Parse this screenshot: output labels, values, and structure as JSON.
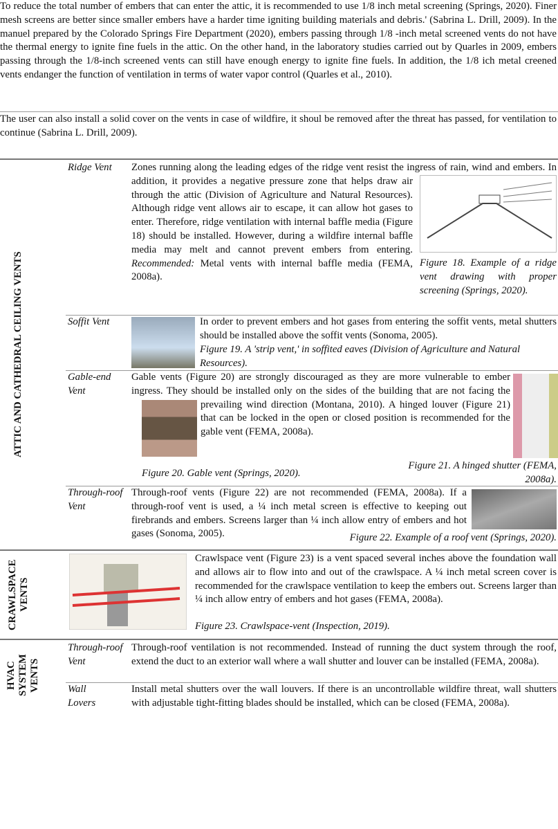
{
  "intro": {
    "paragraphs": [
      "To reduce the total number of embers that can enter the attic, it is recommended to use 1/8 inch metal screening (Springs, 2020). Finer mesh screens are better since smaller embers have a harder time igniting building materials and debris.' (Sabrina L. Drill, 2009). In the manuel prepared by the Colorado Springs Fire Department (2020), embers passing through 1/8 -inch metal screened vents do not have the thermal energy to ignite fine fuels in the attic. On the other hand, in the laboratory studies carried out by Quarles in 2009, embers passing through the 1/8-inch screened vents can still have enough energy to ignite fine fuels. In addition, the 1/8 ich metal creened vents endanger the function of ventilation in terms of water vapor control (Quarles et al., 2010).",
      "The user can also install a solid cover on the vents in case of wildfire, it shoul be removed after the threat has passed, for ventilation to continue (Sabrina L. Drill, 2009)."
    ]
  },
  "sections": [
    {
      "heading": "ATTIC AND CATHEDRAL CEILING VENTS",
      "rows": [
        {
          "label": "Ridge Vent",
          "text": "Zones running along the leading edges of the ridge vent resist the ingress of rain, wind and embers. In addition, it provides a negative pressure zone that helps draw air through the attic (Division of Agriculture and Natural Resources). Although ridge vent allows air to escape, it can allow hot gases to enter. Therefore, ridge ventilation with internal baffle media (Figure 18) should be installed. However, during a wildfire internal baffle media may melt and cannot prevent embers from entering.",
          "recommended_label": "Recommended:",
          "recommended_text": "Metal vents with internal baffle media (FEMA, 2008a).",
          "figures": [
            {
              "caption": "Figure 18. Example of a ridge vent drawing with proper screening (Springs, 2020)."
            }
          ]
        },
        {
          "label": "Soffit Vent",
          "text": "In order to prevent embers and hot gases from entering the soffit vents, metal shutters should be installed above the soffit vents (Sonoma, 2005).",
          "figures": [
            {
              "caption": "Figure 19. A 'strip vent,' in soffited eaves (Division of Agriculture and Natural Resources)."
            }
          ]
        },
        {
          "label": "Gable-end Vent",
          "text": "Gable vents (Figure 20) are strongly discouraged as they are more vulnerable to ember ingress. They should be installed only on the sides of the building that are not facing the prevailing wind direction (Montana, 2010). A hinged louver (Figure 21) that can be locked in the open or closed position is recommended for the gable vent (FEMA, 2008a).",
          "figures": [
            {
              "caption": "Figure 20. Gable vent (Springs, 2020)."
            },
            {
              "caption": "Figure 21. A hinged shutter (FEMA, 2008a)."
            }
          ]
        },
        {
          "label": "Through-roof Vent",
          "text": "Through-roof vents (Figure 22) are not recommended (FEMA, 2008a). If a through-roof vent is used, a ¼ inch metal screen is effective to keeping out firebrands and embers. Screens larger than ¼ inch allow entry of embers and hot gases (Sonoma, 2005).",
          "figures": [
            {
              "caption": "Figure 22. Example of a roof vent (Springs, 2020)."
            }
          ]
        }
      ]
    },
    {
      "heading": "CRAWLSPACE VENTS",
      "rows": [
        {
          "text": "Crawlspace vent (Figure 23) is a vent spaced several inches above the foundation wall and allows air to flow into and out of the crawlspace. A ¼ inch metal screen cover is recommended for the crawlspace ventilation to keep the embers out. Screens larger than ¼ inch allow entry of embers and hot gases (FEMA, 2008a).",
          "figures": [
            {
              "caption": "Figure 23. Crawlspace-vent (Inspection, 2019)."
            }
          ]
        }
      ]
    },
    {
      "heading": "HVAC SYSTEM VENTS",
      "rows": [
        {
          "label": "Through-roof Vent",
          "text": "Through-roof ventilation is not recommended. Instead of running the duct system through the roof, extend the duct to an exterior wall where a wall shutter and louver can be installed (FEMA, 2008a)."
        },
        {
          "label": "Wall Lovers",
          "text": "Install metal shutters over the wall louvers. If there is an uncontrollable wildfire threat, wall shutters with adjustable tight-fitting blades should be installed, which can be closed (FEMA, 2008a)."
        }
      ]
    }
  ]
}
